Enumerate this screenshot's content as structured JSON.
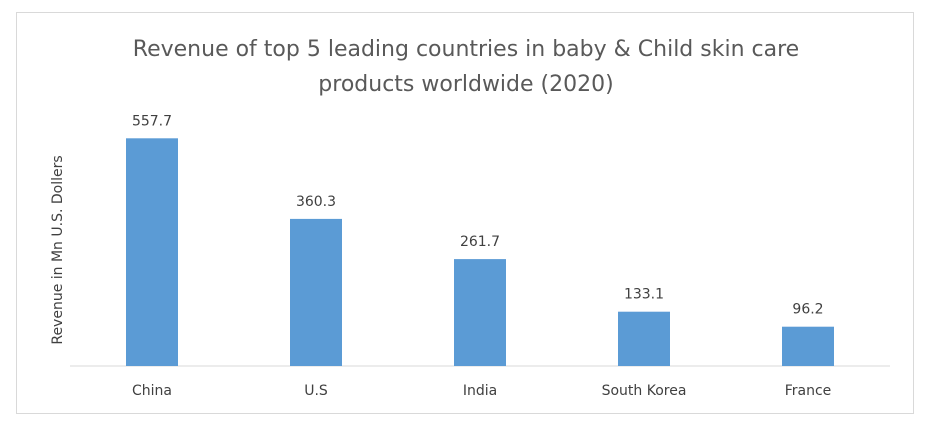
{
  "chart_data": {
    "type": "bar",
    "title_lines": [
      "Revenue of top 5 leading countries in baby & Child skin care",
      "products worldwide (2020)"
    ],
    "xlabel": "",
    "ylabel": "Revenue in Mn  U.S. Dollers",
    "categories": [
      "China",
      "U.S",
      "India",
      "South Korea",
      "France"
    ],
    "values": [
      557.7,
      360.3,
      261.7,
      133.1,
      96.2
    ],
    "data_labels": [
      "557.7",
      "360.3",
      "261.7",
      "133.1",
      "96.2"
    ],
    "ylim": [
      0,
      600
    ],
    "grid": false,
    "legend": "none",
    "colors": {
      "bar": "#5b9bd5",
      "axis": "#d9d9d9"
    }
  }
}
